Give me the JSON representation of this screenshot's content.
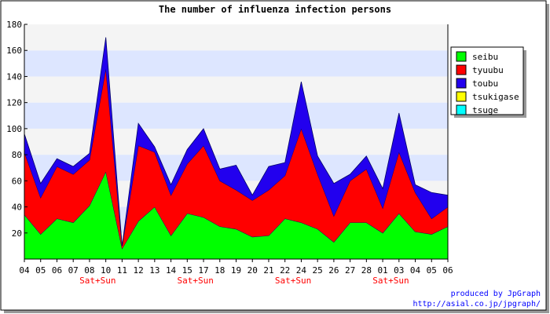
{
  "chart_data": {
    "type": "area",
    "stacked": true,
    "title": "The number of influenza infection persons",
    "categories": [
      "04",
      "05",
      "06",
      "07",
      "08",
      "10",
      "11",
      "12",
      "13",
      "14",
      "15",
      "17",
      "18",
      "19",
      "20",
      "21",
      "22",
      "24",
      "25",
      "26",
      "27",
      "28",
      "01",
      "03",
      "04",
      "05",
      "06"
    ],
    "weekend_labels": [
      {
        "index": 4,
        "text": "Sat+Sun"
      },
      {
        "index": 10,
        "text": "Sat+Sun"
      },
      {
        "index": 16,
        "text": "Sat+Sun"
      },
      {
        "index": 22,
        "text": "Sat+Sun"
      }
    ],
    "ylim": [
      0,
      180
    ],
    "yticks": [
      20,
      40,
      60,
      80,
      100,
      120,
      140,
      160,
      180
    ],
    "grid": true,
    "legend_position": "top-right",
    "series": [
      {
        "name": "seibu",
        "color": "#00ff00",
        "values": [
          34,
          19,
          31,
          28,
          41,
          67,
          8,
          29,
          40,
          18,
          35,
          32,
          25,
          23,
          17,
          18,
          31,
          28,
          23,
          13,
          28,
          28,
          20,
          35,
          21,
          19,
          25
        ]
      },
      {
        "name": "tyuubu",
        "color": "#ff0000",
        "values": [
          48,
          28,
          40,
          37,
          35,
          79,
          2,
          58,
          42,
          31,
          38,
          55,
          35,
          30,
          28,
          35,
          33,
          72,
          42,
          20,
          32,
          41,
          19,
          47,
          30,
          12,
          15
        ]
      },
      {
        "name": "toubu",
        "color": "#2200ee",
        "values": [
          14,
          11,
          6,
          6,
          5,
          24,
          0,
          17,
          4,
          8,
          11,
          13,
          9,
          19,
          4,
          18,
          10,
          36,
          14,
          25,
          5,
          10,
          15,
          30,
          6,
          20,
          9
        ]
      },
      {
        "name": "tsukigase",
        "color": "#ffff00",
        "values": [
          0,
          0,
          0,
          0,
          0,
          0,
          0,
          0,
          0,
          0,
          0,
          0,
          0,
          0,
          0,
          0,
          0,
          0,
          0,
          0,
          0,
          0,
          0,
          0,
          0,
          0,
          0
        ]
      },
      {
        "name": "tsuge",
        "color": "#00ffff",
        "values": [
          0,
          0,
          0,
          0,
          0,
          0,
          0,
          0,
          0,
          0,
          0,
          0,
          0,
          0,
          0,
          0,
          0,
          0,
          0,
          0,
          0,
          0,
          0,
          0,
          0,
          0,
          0
        ]
      }
    ],
    "credit_line1": "produced by JpGraph",
    "credit_line2": "http://asial.co.jp/jpgraph/"
  },
  "colors": {
    "band_light": "#f4f4f4",
    "band_blue": "#dde6ff",
    "weekend_label": "#ff0000",
    "credit": "#0000ff"
  }
}
